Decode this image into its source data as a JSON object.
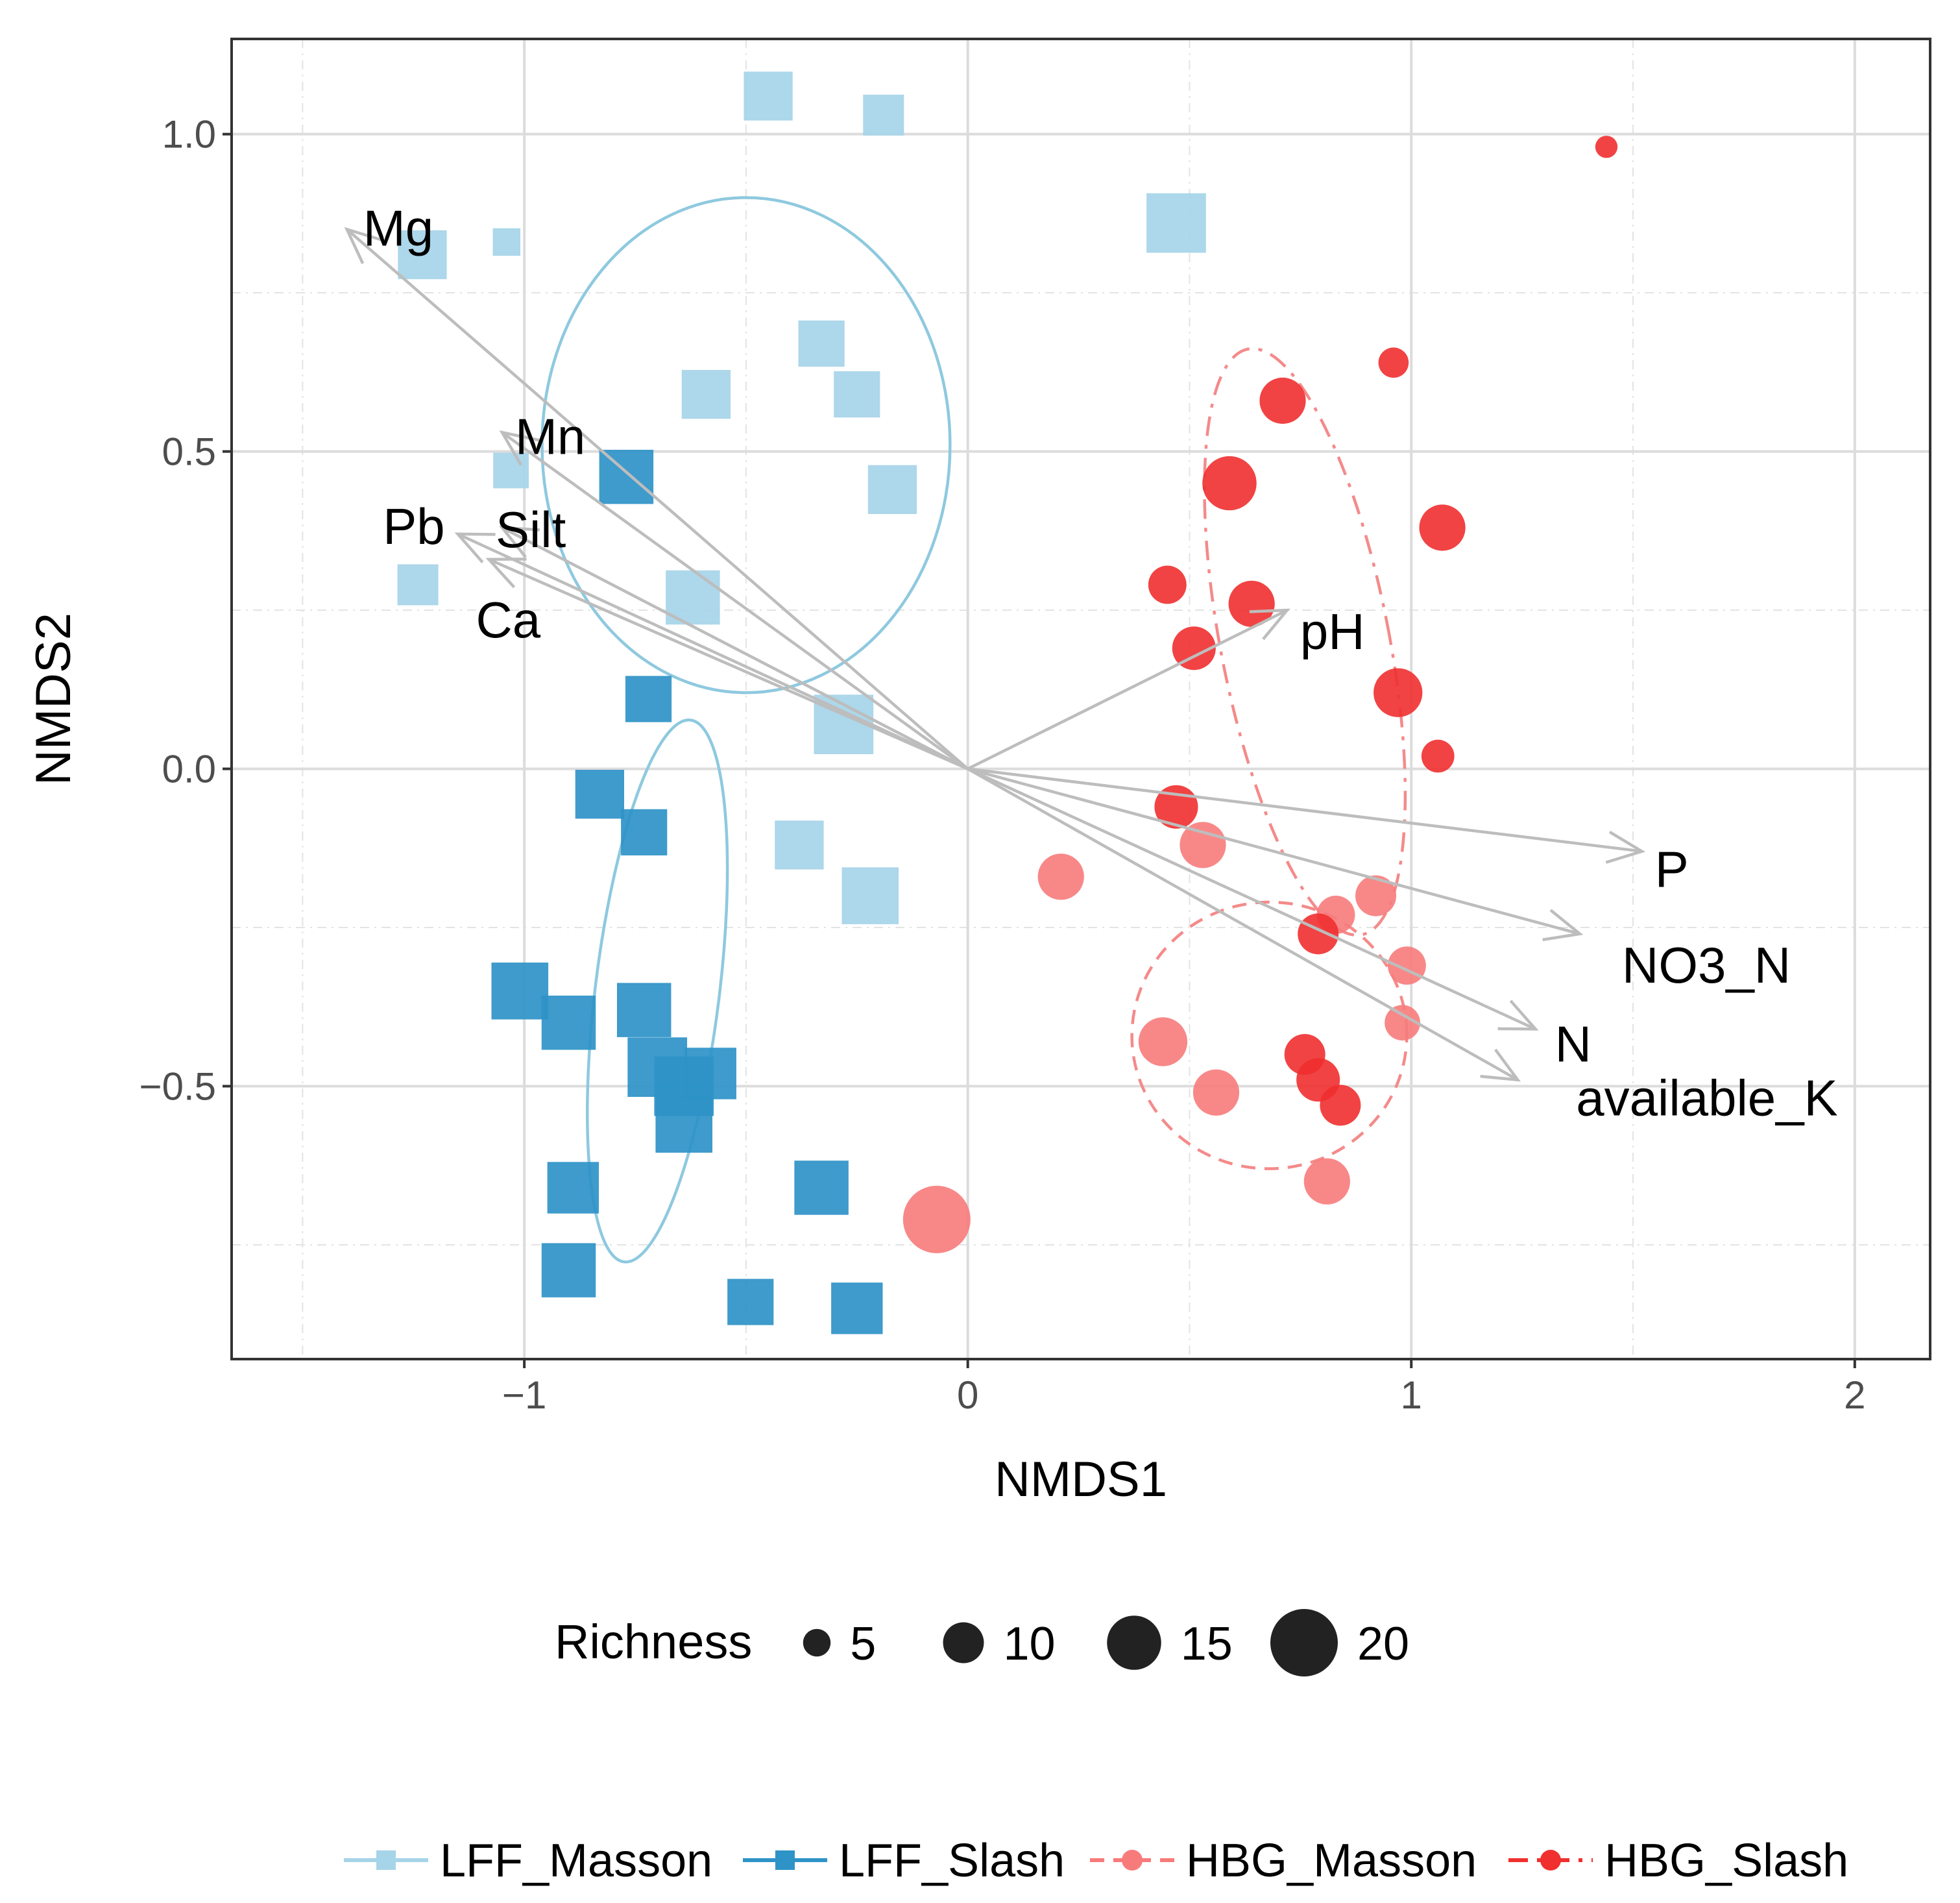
{
  "chart_data": {
    "type": "scatter",
    "title": "",
    "xlabel": "NMDS1",
    "ylabel": "NMDS2",
    "xlim": [
      -1.66,
      2.17
    ],
    "ylim": [
      -0.93,
      1.15
    ],
    "x_ticks": [
      -1,
      0,
      1,
      2
    ],
    "x_tick_labels": [
      "−1",
      "0",
      "1",
      "2"
    ],
    "y_ticks": [
      -0.5,
      0.0,
      0.5,
      1.0
    ],
    "y_tick_labels": [
      "−0.5",
      "0.0",
      "0.5",
      "1.0"
    ],
    "grid": true,
    "legend_position": "bottom",
    "colors": {
      "LFF_Masson": "#a6d4e8",
      "LFF_Slash": "#2e93c7",
      "HBG_Masson": "#f77b7b",
      "HBG_Slash": "#f02f2f",
      "vector": "#bdbdbd",
      "ellipse_lff": "#8ec9df",
      "ellipse_hbg": "#f48a8a"
    },
    "series": [
      {
        "name": "LFF_Masson",
        "marker": "square",
        "line": "solid",
        "points": [
          {
            "x": -0.45,
            "y": 1.06,
            "richness": 13
          },
          {
            "x": -0.19,
            "y": 1.03,
            "richness": 10
          },
          {
            "x": 0.47,
            "y": 0.86,
            "richness": 17
          },
          {
            "x": -1.23,
            "y": 0.81,
            "richness": 13
          },
          {
            "x": -1.04,
            "y": 0.83,
            "richness": 5
          },
          {
            "x": -0.33,
            "y": 0.67,
            "richness": 12
          },
          {
            "x": -0.59,
            "y": 0.59,
            "richness": 13
          },
          {
            "x": -0.25,
            "y": 0.59,
            "richness": 12
          },
          {
            "x": -1.03,
            "y": 0.47,
            "richness": 8
          },
          {
            "x": -0.17,
            "y": 0.44,
            "richness": 13
          },
          {
            "x": -1.24,
            "y": 0.29,
            "richness": 10
          },
          {
            "x": -0.62,
            "y": 0.27,
            "richness": 15
          },
          {
            "x": -0.28,
            "y": 0.07,
            "richness": 17
          },
          {
            "x": -0.38,
            "y": -0.12,
            "richness": 13
          },
          {
            "x": -0.22,
            "y": -0.2,
            "richness": 16
          }
        ]
      },
      {
        "name": "LFF_Slash",
        "marker": "square",
        "line": "solid",
        "points": [
          {
            "x": -0.77,
            "y": 0.46,
            "richness": 15
          },
          {
            "x": -0.72,
            "y": 0.11,
            "richness": 12
          },
          {
            "x": -0.83,
            "y": -0.04,
            "richness": 13
          },
          {
            "x": -0.73,
            "y": -0.1,
            "richness": 12
          },
          {
            "x": -1.01,
            "y": -0.35,
            "richness": 16
          },
          {
            "x": -0.9,
            "y": -0.4,
            "richness": 15
          },
          {
            "x": -0.73,
            "y": -0.38,
            "richness": 15
          },
          {
            "x": -0.7,
            "y": -0.47,
            "richness": 17
          },
          {
            "x": -0.64,
            "y": -0.5,
            "richness": 17
          },
          {
            "x": -0.58,
            "y": -0.48,
            "richness": 14
          },
          {
            "x": -0.64,
            "y": -0.56,
            "richness": 16
          },
          {
            "x": -0.89,
            "y": -0.66,
            "richness": 14
          },
          {
            "x": -0.33,
            "y": -0.66,
            "richness": 15
          },
          {
            "x": -0.9,
            "y": -0.79,
            "richness": 15
          },
          {
            "x": -0.49,
            "y": -0.84,
            "richness": 12
          },
          {
            "x": -0.25,
            "y": -0.85,
            "richness": 14
          }
        ]
      },
      {
        "name": "HBG_Masson",
        "marker": "circle",
        "line": "dashed",
        "points": [
          {
            "x": 0.21,
            "y": -0.17,
            "richness": 12
          },
          {
            "x": 0.53,
            "y": -0.12,
            "richness": 12
          },
          {
            "x": 0.92,
            "y": -0.2,
            "richness": 10
          },
          {
            "x": 0.83,
            "y": -0.23,
            "richness": 9
          },
          {
            "x": 0.99,
            "y": -0.31,
            "richness": 9
          },
          {
            "x": 0.44,
            "y": -0.43,
            "richness": 13
          },
          {
            "x": 0.56,
            "y": -0.51,
            "richness": 12
          },
          {
            "x": 0.98,
            "y": -0.4,
            "richness": 8
          },
          {
            "x": 0.81,
            "y": -0.65,
            "richness": 12
          },
          {
            "x": -0.07,
            "y": -0.71,
            "richness": 20
          }
        ]
      },
      {
        "name": "HBG_Slash",
        "marker": "circle",
        "line": "dotdash",
        "points": [
          {
            "x": 1.44,
            "y": 0.98,
            "richness": 3
          },
          {
            "x": 0.96,
            "y": 0.64,
            "richness": 6
          },
          {
            "x": 0.71,
            "y": 0.58,
            "richness": 12
          },
          {
            "x": 0.59,
            "y": 0.45,
            "richness": 15
          },
          {
            "x": 1.07,
            "y": 0.38,
            "richness": 12
          },
          {
            "x": 0.45,
            "y": 0.29,
            "richness": 9
          },
          {
            "x": 0.64,
            "y": 0.26,
            "richness": 12
          },
          {
            "x": 0.51,
            "y": 0.19,
            "richness": 11
          },
          {
            "x": 0.97,
            "y": 0.12,
            "richness": 13
          },
          {
            "x": 1.06,
            "y": 0.02,
            "richness": 7
          },
          {
            "x": 0.47,
            "y": -0.06,
            "richness": 11
          },
          {
            "x": 0.79,
            "y": -0.26,
            "richness": 10
          },
          {
            "x": 0.76,
            "y": -0.45,
            "richness": 10
          },
          {
            "x": 0.79,
            "y": -0.49,
            "richness": 11
          },
          {
            "x": 0.84,
            "y": -0.53,
            "richness": 10
          }
        ]
      }
    ],
    "ellipses": [
      {
        "group": "LFF_Masson",
        "style": "solid",
        "cx": -0.5,
        "cy": 0.51,
        "rx": 0.46,
        "ry": 0.39,
        "angle": 0
      },
      {
        "group": "LFF_Slash",
        "style": "solid",
        "cx": -0.7,
        "cy": -0.35,
        "rx": 0.14,
        "ry": 0.43,
        "angle": 7
      },
      {
        "group": "HBG_Slash",
        "style": "dotdash",
        "cx": 0.76,
        "cy": 0.2,
        "rx": 0.19,
        "ry": 0.47,
        "angle": -11
      },
      {
        "group": "HBG_Masson",
        "style": "dashed",
        "cx": 0.68,
        "cy": -0.42,
        "rx": 0.31,
        "ry": 0.21,
        "angle": -3
      }
    ],
    "vectors": [
      {
        "label": "Mg",
        "x": -1.4,
        "y": 0.85
      },
      {
        "label": "Mn",
        "x": -1.05,
        "y": 0.53
      },
      {
        "label": "Pb",
        "x": -1.15,
        "y": 0.37
      },
      {
        "label": "Silt",
        "x": -1.05,
        "y": 0.38
      },
      {
        "label": "Ca",
        "x": -1.08,
        "y": 0.33
      },
      {
        "label": "pH",
        "x": 0.72,
        "y": 0.25
      },
      {
        "label": "P",
        "x": 1.52,
        "y": -0.13
      },
      {
        "label": "NO3_N",
        "x": 1.38,
        "y": -0.26
      },
      {
        "label": "N",
        "x": 1.28,
        "y": -0.41
      },
      {
        "label": "available_K",
        "x": 1.24,
        "y": -0.49
      }
    ],
    "size_legend": {
      "title": "Richness",
      "values": [
        5,
        10,
        15,
        20
      ],
      "labels": [
        "5",
        "10",
        "15",
        "20"
      ]
    },
    "group_legend": [
      {
        "name": "LFF_Masson",
        "label": "LFF_Masson"
      },
      {
        "name": "LFF_Slash",
        "label": "LFF_Slash"
      },
      {
        "name": "HBG_Masson",
        "label": "HBG_Masson"
      },
      {
        "name": "HBG_Slash",
        "label": "HBG_Slash"
      }
    ]
  }
}
